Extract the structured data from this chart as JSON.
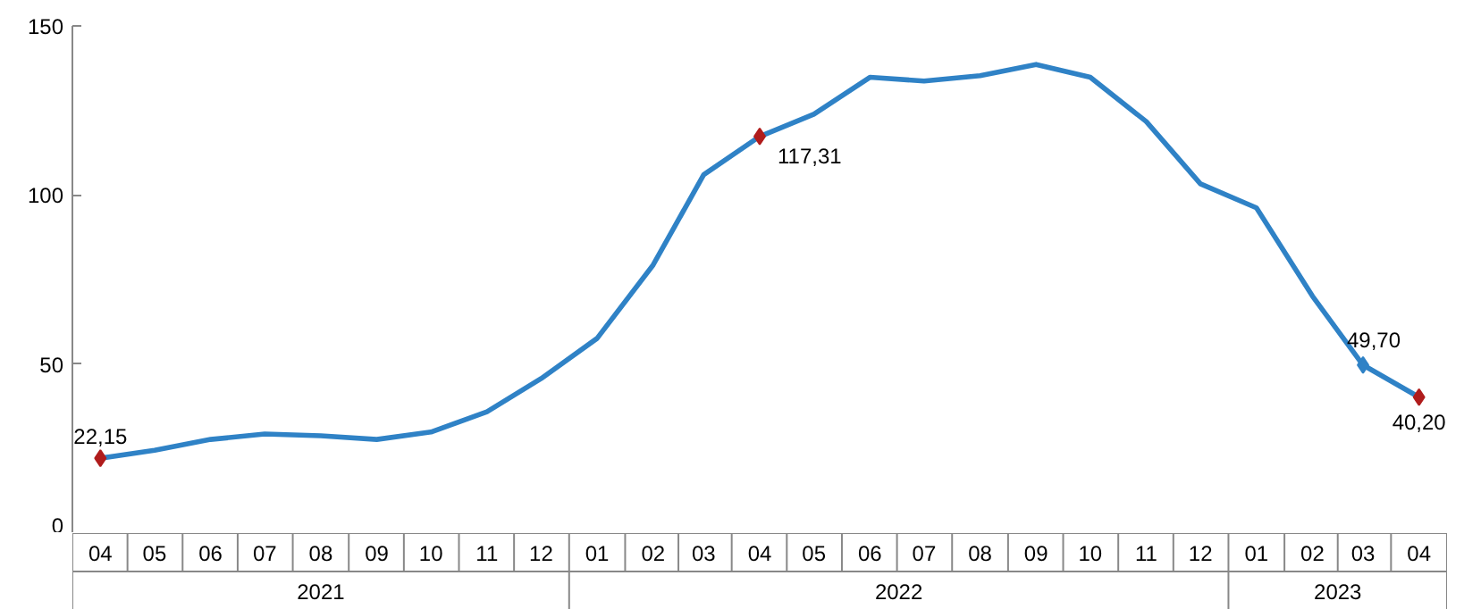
{
  "chart_data": {
    "type": "line",
    "series": [
      {
        "color": "#2f82c6",
        "x": [
          "2021-04",
          "2021-05",
          "2021-06",
          "2021-07",
          "2021-08",
          "2021-09",
          "2021-10",
          "2021-11",
          "2021-12",
          "2022-01",
          "2022-02",
          "2022-03",
          "2022-04",
          "2022-05",
          "2022-06",
          "2022-07",
          "2022-08",
          "2022-09",
          "2022-10",
          "2022-11",
          "2022-12",
          "2023-01",
          "2023-02",
          "2023-03",
          "2023-04"
        ],
        "values": [
          22.15,
          24.5,
          27.7,
          29.3,
          28.8,
          27.7,
          29.9,
          35.9,
          45.7,
          57.6,
          79.3,
          106,
          117.31,
          123.9,
          134.8,
          133.7,
          135.3,
          138.6,
          134.8,
          121.7,
          103.3,
          96.2,
          70.1,
          49.7,
          40.2
        ]
      },
      {
        "type": "scatter",
        "marker": "diamond",
        "x": [
          "2021-04",
          "2022-04",
          "2023-03",
          "2023-04"
        ],
        "values": [
          22.15,
          117.31,
          49.7,
          40.2
        ],
        "value_labels": [
          "22,15",
          "117,31",
          "49,70",
          "40,20"
        ],
        "colors": [
          "#b01c1c",
          "#b01c1c",
          "#2f82c6",
          "#b01c1c"
        ]
      }
    ],
    "xlim": [
      "2021-03-16T12:00",
      "2023-04-16T12:00"
    ],
    "xticks": [
      {
        "value": "2021-04",
        "label": "04"
      },
      {
        "value": "2021-05",
        "label": "05"
      },
      {
        "value": "2021-06",
        "label": "06"
      },
      {
        "value": "2021-07",
        "label": "07"
      },
      {
        "value": "2021-08",
        "label": "08"
      },
      {
        "value": "2021-09",
        "label": "09"
      },
      {
        "value": "2021-10",
        "label": "10"
      },
      {
        "value": "2021-11",
        "label": "11"
      },
      {
        "value": "2021-12",
        "label": "12"
      },
      {
        "value": "2022-01",
        "label": "01"
      },
      {
        "value": "2022-02",
        "label": "02"
      },
      {
        "value": "2022-03",
        "label": "03"
      },
      {
        "value": "2022-04",
        "label": "04"
      },
      {
        "value": "2022-05",
        "label": "05"
      },
      {
        "value": "2022-06",
        "label": "06"
      },
      {
        "value": "2022-07",
        "label": "07"
      },
      {
        "value": "2022-08",
        "label": "08"
      },
      {
        "value": "2022-09",
        "label": "09"
      },
      {
        "value": "2022-10",
        "label": "10"
      },
      {
        "value": "2022-11",
        "label": "11"
      },
      {
        "value": "2022-12",
        "label": "12"
      },
      {
        "value": "2023-01",
        "label": "01"
      },
      {
        "value": "2023-02",
        "label": "02"
      },
      {
        "value": "2023-03",
        "label": "03"
      },
      {
        "value": "2023-04",
        "label": "04"
      }
    ],
    "annotations": [
      "2021",
      "2022",
      "2023"
    ],
    "ylim": [
      0,
      150
    ],
    "yticks": [
      0,
      50,
      100,
      150
    ],
    "grid": false
  }
}
